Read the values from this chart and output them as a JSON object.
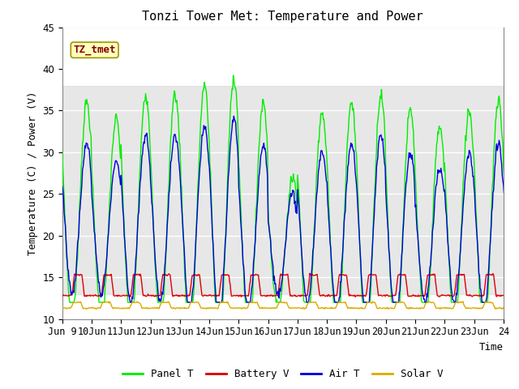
{
  "title": "Tonzi Tower Met: Temperature and Power",
  "ylabel": "Temperature (C) / Power (V)",
  "xlabel": "Time",
  "annotation": "TZ_tmet",
  "ylim": [
    10,
    45
  ],
  "xlim": [
    0,
    360
  ],
  "shade_ymin": 13,
  "shade_ymax": 38,
  "tick_positions": [
    0,
    24,
    48,
    72,
    96,
    120,
    144,
    168,
    192,
    216,
    240,
    264,
    288,
    312,
    336,
    360
  ],
  "tick_labels": [
    "Jun 9",
    "10Jun",
    "11Jun",
    "12Jun",
    "13Jun",
    "14Jun",
    "15Jun",
    "16Jun",
    "17Jun",
    "18Jun",
    "19Jun",
    "20Jun",
    "21Jun",
    "22Jun",
    "23Jun",
    "24"
  ],
  "legend_labels": [
    "Panel T",
    "Battery V",
    "Air T",
    "Solar V"
  ],
  "line_colors": [
    "#00ee00",
    "#dd0000",
    "#0000dd",
    "#ddaa00"
  ],
  "bg_color": "#ffffff",
  "shade_color": "#dddddd",
  "title_fontsize": 11,
  "axis_fontsize": 9,
  "tick_fontsize": 8.5
}
